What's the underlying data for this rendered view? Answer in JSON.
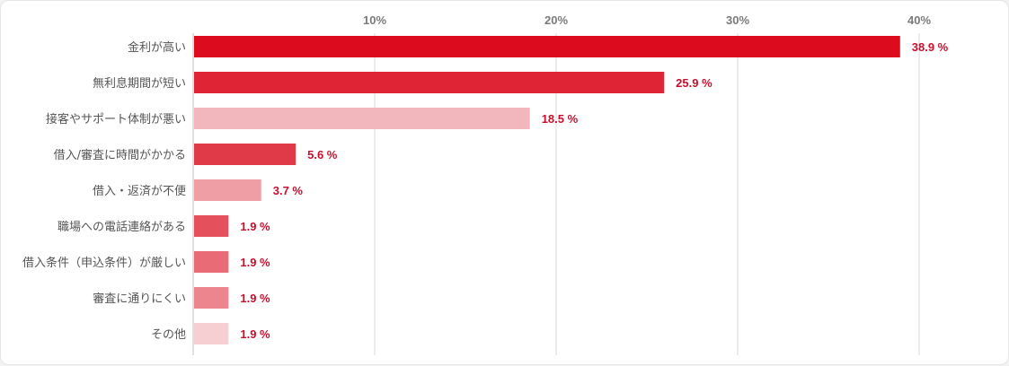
{
  "chart_data": {
    "type": "bar",
    "orientation": "horizontal",
    "title": "",
    "xlabel": "",
    "ylabel": "",
    "xlim": [
      0,
      40
    ],
    "ticks": [
      "10%",
      "20%",
      "30%",
      "40%"
    ],
    "tick_values": [
      10,
      20,
      30,
      40
    ],
    "grid": true,
    "categories": [
      "金利が高い",
      "無利息期間が短い",
      "接客やサポート体制が悪い",
      "借入/審査に時間がかかる",
      "借入・返済が不便",
      "職場への電話連絡がある",
      "借入条件（申込条件）が厳しい",
      "審査に通りにくい",
      "その他"
    ],
    "values": [
      38.9,
      25.9,
      18.5,
      5.6,
      3.7,
      1.9,
      1.9,
      1.9,
      1.9
    ],
    "value_labels": [
      "38.9 %",
      "25.9 %",
      "18.5 %",
      "5.6 %",
      "3.7 %",
      "1.9 %",
      "1.9 %",
      "1.9 %",
      "1.9 %"
    ],
    "colors": [
      "#dc0b1e",
      "#df2535",
      "#f2b7bc",
      "#e03a48",
      "#ef9ea6",
      "#e5505d",
      "#e86b76",
      "#ec858e",
      "#f5cfd2"
    ],
    "value_label_color": "#c8102e",
    "grid_color": "#d9d9d9"
  }
}
